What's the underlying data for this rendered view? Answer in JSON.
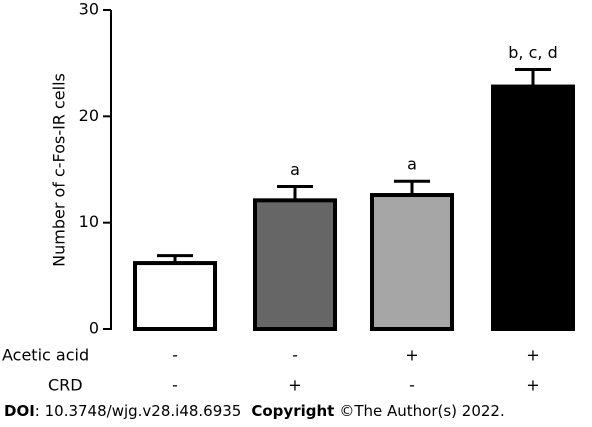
{
  "chart_data": {
    "type": "bar",
    "y_label": "Number of c-Fos-IR cells",
    "values": [
      6.2,
      12.1,
      12.6,
      22.8
    ],
    "errors": [
      0.7,
      1.3,
      1.3,
      1.6
    ],
    "colors": [
      "#ffffff",
      "#666666",
      "#a6a6a6",
      "#000000"
    ],
    "annotations": [
      null,
      "a",
      "a",
      "b, c, d"
    ],
    "ylim": [
      0,
      30
    ],
    "yticks": [
      0,
      10,
      20,
      30
    ],
    "rows": [
      {
        "name": "Acetic acid",
        "values": [
          "-",
          "-",
          "+",
          "+"
        ]
      },
      {
        "name": "CRD",
        "values": [
          "-",
          "+",
          "-",
          "+"
        ]
      }
    ]
  },
  "footer": {
    "doi_label": "DOI",
    "doi": ": 10.3748/wjg.v28.i48.6935",
    "copyright_label": "Copyright",
    "copyright": "©The Author(s) 2022."
  }
}
